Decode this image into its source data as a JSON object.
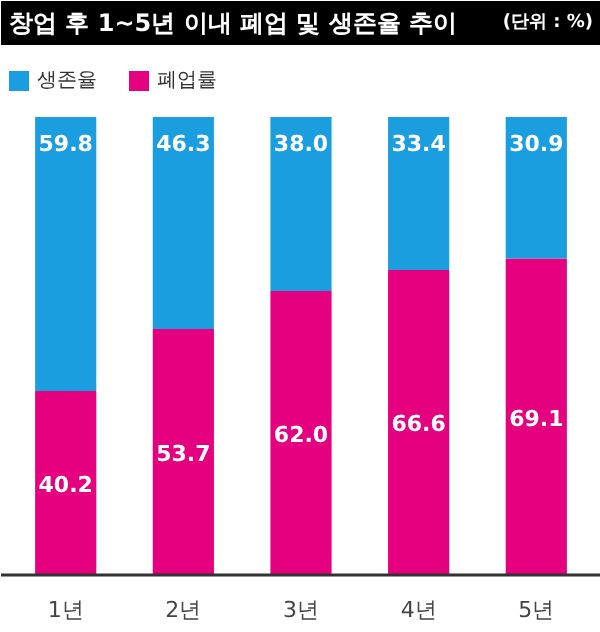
{
  "chart_data": {
    "type": "bar",
    "title": "창업 후 1~5년 이내 폐업 및 생존율 추이",
    "annotations": [
      "(단위 : %)"
    ],
    "categories": [
      "1년",
      "2년",
      "3년",
      "4년",
      "5년"
    ],
    "series": [
      {
        "name": "폐업률",
        "color": "#e4007f",
        "values": [
          40.2,
          53.7,
          62.0,
          66.6,
          69.1
        ],
        "value_labels": [
          "40.2",
          "53.7",
          "62.0",
          "66.6",
          "69.1"
        ]
      },
      {
        "name": "생존율",
        "color": "#1a9ee0",
        "values": [
          59.8,
          46.3,
          38.0,
          33.4,
          30.9
        ],
        "value_labels": [
          "59.8",
          "46.3",
          "38.0",
          "33.4",
          "30.9"
        ]
      }
    ],
    "stacked": true,
    "ylim": [
      0,
      100
    ],
    "tick_labels": "x",
    "legend": "top left"
  }
}
